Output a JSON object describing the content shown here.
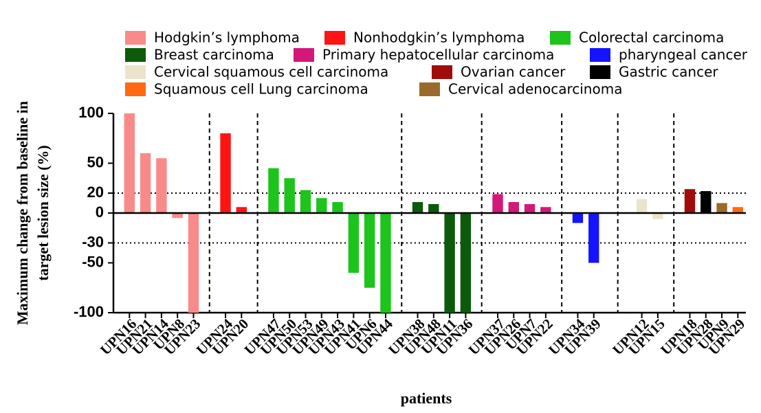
{
  "chart_data": {
    "type": "bar",
    "ylabel": "Maximum change from baseline in target lesion size (%)",
    "xlabel": "patients",
    "categories": [
      "UPN16",
      "UPN21",
      "UPN14",
      "UPN8",
      "UPN23",
      null,
      "UPN24",
      "UPN20",
      null,
      "UPN47",
      "UPN50",
      "UPN53",
      "UPN49",
      "UPN43",
      "UPN41",
      "UPN6",
      "UPN44",
      null,
      "UPN38",
      "UPN48",
      "UPN11",
      "UPN36",
      null,
      "UPN37",
      "UPN26",
      "UPN7",
      "UPN22",
      null,
      "UPN34",
      "UPN39",
      null,
      null,
      "UPN12",
      "UPN15",
      null,
      "UPN18",
      "UPN28",
      "UPN9",
      "UPN29"
    ],
    "series": [
      {
        "name": "Hodgkin’s lymphoma",
        "color": "#f98a8a",
        "values": [
          100,
          60,
          55,
          -5,
          -100,
          null,
          null,
          null,
          null,
          null,
          null,
          null,
          null,
          null,
          null,
          null,
          null,
          null,
          null,
          null,
          null,
          null,
          null,
          null,
          null,
          null,
          null,
          null,
          null,
          null,
          null,
          null,
          null,
          null,
          null,
          null,
          null,
          null,
          null
        ]
      },
      {
        "name": "Nonhodgkin’s lymphoma",
        "color": "#ff1414",
        "values": [
          null,
          null,
          null,
          null,
          null,
          null,
          80,
          6,
          null,
          null,
          null,
          null,
          null,
          null,
          null,
          null,
          null,
          null,
          null,
          null,
          null,
          null,
          null,
          null,
          null,
          null,
          null,
          null,
          null,
          null,
          null,
          null,
          null,
          null,
          null,
          null,
          null,
          null,
          null
        ]
      },
      {
        "name": "Colorectal carcinoma",
        "color": "#1cc41c",
        "values": [
          null,
          null,
          null,
          null,
          null,
          null,
          null,
          null,
          null,
          45,
          35,
          23,
          15,
          11,
          -60,
          -75,
          -100,
          null,
          null,
          null,
          null,
          null,
          null,
          null,
          null,
          null,
          null,
          null,
          null,
          null,
          null,
          null,
          null,
          null,
          null,
          null,
          null,
          null,
          null
        ]
      },
      {
        "name": "Breast carcinoma",
        "color": "#0c5a0c",
        "values": [
          null,
          null,
          null,
          null,
          null,
          null,
          null,
          null,
          null,
          null,
          null,
          null,
          null,
          null,
          null,
          null,
          null,
          null,
          11,
          9,
          -100,
          -100,
          null,
          null,
          null,
          null,
          null,
          null,
          null,
          null,
          null,
          null,
          null,
          null,
          null,
          null,
          null,
          null,
          null
        ]
      },
      {
        "name": "Primary hepatocellular carcinoma",
        "color": "#d4187a",
        "values": [
          null,
          null,
          null,
          null,
          null,
          null,
          null,
          null,
          null,
          null,
          null,
          null,
          null,
          null,
          null,
          null,
          null,
          null,
          null,
          null,
          null,
          null,
          null,
          19,
          11,
          9,
          6,
          null,
          null,
          null,
          null,
          null,
          null,
          null,
          null,
          null,
          null,
          null,
          null
        ]
      },
      {
        "name": "pharyngeal cancer",
        "color": "#1414ff",
        "values": [
          null,
          null,
          null,
          null,
          null,
          null,
          null,
          null,
          null,
          null,
          null,
          null,
          null,
          null,
          null,
          null,
          null,
          null,
          null,
          null,
          null,
          null,
          null,
          null,
          null,
          null,
          null,
          null,
          -10,
          -50,
          null,
          null,
          null,
          null,
          null,
          null,
          null,
          null,
          null
        ]
      },
      {
        "name": "Cervical squamous cell carcinoma",
        "color": "#ebe4cc",
        "values": [
          null,
          null,
          null,
          null,
          null,
          null,
          null,
          null,
          null,
          null,
          null,
          null,
          null,
          null,
          null,
          null,
          null,
          null,
          null,
          null,
          null,
          null,
          null,
          null,
          null,
          null,
          null,
          null,
          null,
          null,
          null,
          null,
          14,
          -6,
          null,
          null,
          null,
          null,
          null
        ]
      },
      {
        "name": "Ovarian cancer",
        "color": "#a00c0c",
        "values": [
          null,
          null,
          null,
          null,
          null,
          null,
          null,
          null,
          null,
          null,
          null,
          null,
          null,
          null,
          null,
          null,
          null,
          null,
          null,
          null,
          null,
          null,
          null,
          null,
          null,
          null,
          null,
          null,
          null,
          null,
          null,
          null,
          null,
          null,
          null,
          24,
          null,
          null,
          null
        ]
      },
      {
        "name": "Gastric cancer",
        "color": "#000000",
        "values": [
          null,
          null,
          null,
          null,
          null,
          null,
          null,
          null,
          null,
          null,
          null,
          null,
          null,
          null,
          null,
          null,
          null,
          null,
          null,
          null,
          null,
          null,
          null,
          null,
          null,
          null,
          null,
          null,
          null,
          null,
          null,
          null,
          null,
          null,
          null,
          null,
          22,
          null,
          null
        ]
      },
      {
        "name": "Squamous cell Lung carcinoma",
        "color": "#ff6a10",
        "values": [
          null,
          null,
          null,
          null,
          null,
          null,
          null,
          null,
          null,
          null,
          null,
          null,
          null,
          null,
          null,
          null,
          null,
          null,
          null,
          null,
          null,
          null,
          null,
          null,
          null,
          null,
          null,
          null,
          null,
          null,
          null,
          null,
          null,
          null,
          null,
          null,
          null,
          null,
          6
        ]
      },
      {
        "name": "Cervical adenocarcinoma",
        "color": "#9b6a2a",
        "values": [
          null,
          null,
          null,
          null,
          null,
          null,
          null,
          null,
          null,
          null,
          null,
          null,
          null,
          null,
          null,
          null,
          null,
          null,
          null,
          null,
          null,
          null,
          null,
          null,
          null,
          null,
          null,
          null,
          null,
          null,
          null,
          null,
          null,
          null,
          null,
          null,
          null,
          10,
          null
        ]
      }
    ],
    "ylim": [
      -100,
      100
    ],
    "yticks": [
      100,
      50,
      20,
      0,
      -30,
      -50,
      -100
    ],
    "reference_lines": [
      20,
      -30
    ]
  }
}
